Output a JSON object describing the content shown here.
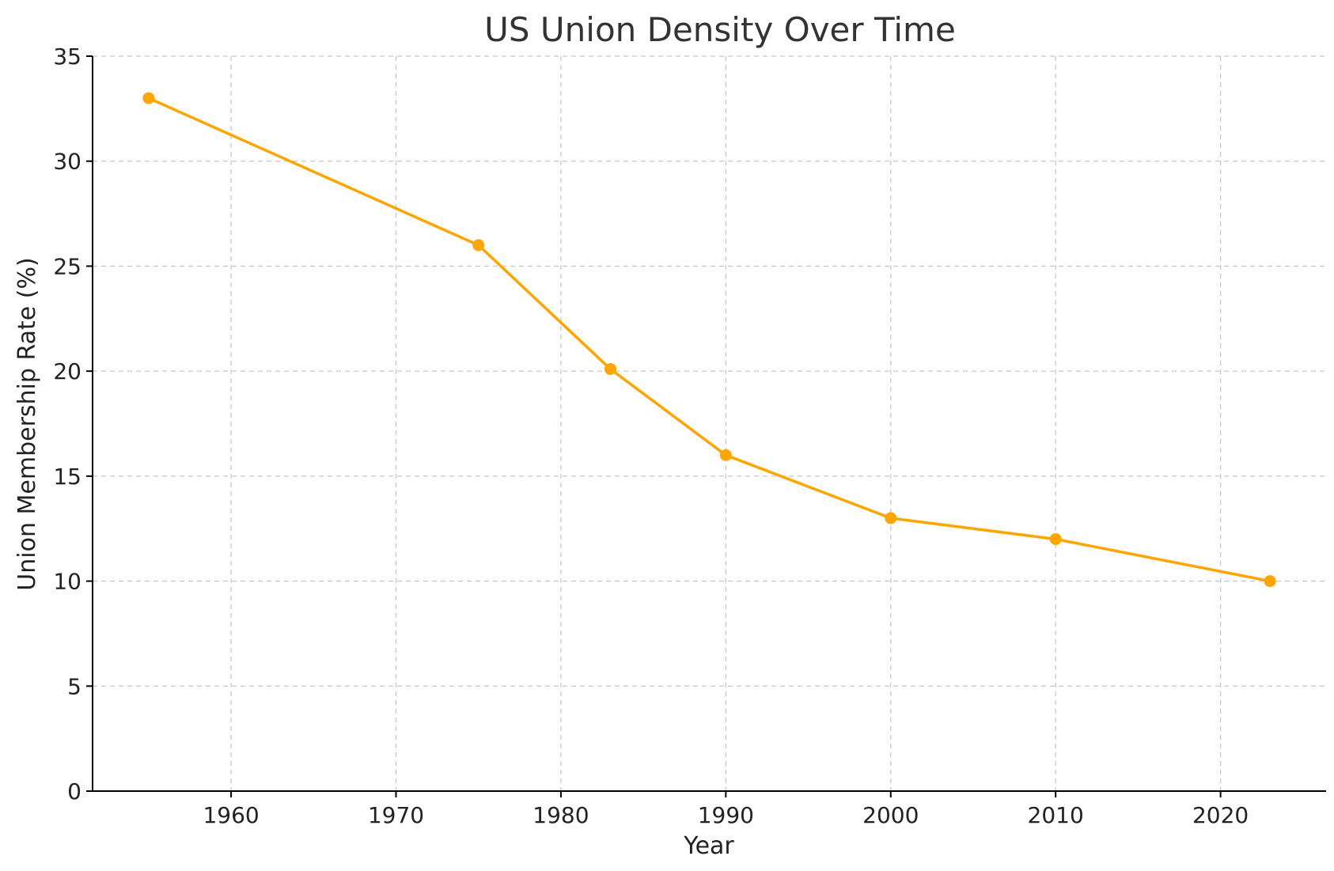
{
  "chart_data": {
    "type": "line",
    "title": "US Union Density Over Time",
    "xlabel": "Year",
    "ylabel": "Union Membership Rate (%)",
    "xlim": [
      1951.6,
      2026.4
    ],
    "ylim": [
      0,
      35
    ],
    "xticks": [
      1960,
      1970,
      1980,
      1990,
      2000,
      2010,
      2020
    ],
    "yticks": [
      0,
      5,
      10,
      15,
      20,
      25,
      30,
      35
    ],
    "grid": true,
    "series": [
      {
        "color": "#FFA500",
        "marker": "circle",
        "x": [
          1955,
          1975,
          1983,
          1990,
          2000,
          2010,
          2023
        ],
        "y": [
          33,
          26,
          20.1,
          16,
          13,
          12,
          10
        ]
      }
    ]
  }
}
